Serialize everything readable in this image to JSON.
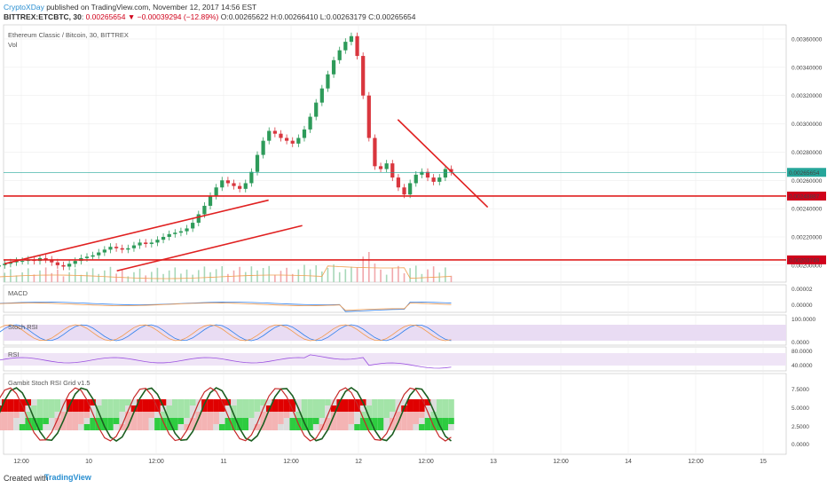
{
  "header": {
    "author": "CryptoXDay",
    "published": "published on TradingView.com, November 12, 2017 14:56 EST",
    "symbol": "BITTREX:ETCBTC, 30",
    "last": "0.00265654",
    "change": "▼ −0.00039294 (−12.89%)",
    "ohlc": "O:0.00265622 H:0.00266410 L:0.00263179 C:0.00265654"
  },
  "footer": {
    "created": "Created with",
    "brand": "TradingView"
  },
  "chart_data": {
    "type": "candlestick",
    "title": "Ethereum Classic / Bitcoin, 30, BITTREX",
    "volume_label": "Vol",
    "x_ticks": [
      "12:00",
      "10",
      "12:00",
      "11",
      "12:00",
      "12",
      "12:00",
      "13",
      "12:00",
      "14",
      "12:00",
      "15"
    ],
    "price_axis": {
      "ticks": [
        "0.00360000",
        "0.00340000",
        "0.00320000",
        "0.00300000",
        "0.00280000",
        "0.00260000",
        "0.00240000",
        "0.00220000",
        "0.00200000"
      ],
      "ylim": [
        0.00188,
        0.0037
      ]
    },
    "price_labels": [
      {
        "value": 0.00265654,
        "text": "0.00265654",
        "color": "#26a69a"
      },
      {
        "value": 0.00248887,
        "text": "0.00248887",
        "color": "#d0021b"
      },
      {
        "value": 0.00203749,
        "text": "0.00203749",
        "color": "#d0021b"
      }
    ],
    "close_series": [
      0.002,
      0.00201,
      0.00202,
      0.00203,
      0.00203,
      0.00204,
      0.00203,
      0.00205,
      0.00204,
      0.00202,
      0.002,
      0.00199,
      0.00201,
      0.00203,
      0.00205,
      0.00206,
      0.00207,
      0.00209,
      0.00211,
      0.00213,
      0.00212,
      0.00211,
      0.00212,
      0.00214,
      0.00216,
      0.00215,
      0.00216,
      0.00218,
      0.0022,
      0.00222,
      0.00223,
      0.00224,
      0.00226,
      0.0023,
      0.00236,
      0.00242,
      0.00249,
      0.00255,
      0.0026,
      0.00258,
      0.00256,
      0.00254,
      0.00258,
      0.00266,
      0.00278,
      0.00288,
      0.00295,
      0.00293,
      0.0029,
      0.00288,
      0.00286,
      0.0029,
      0.00296,
      0.00305,
      0.00315,
      0.00325,
      0.00335,
      0.00345,
      0.00352,
      0.00358,
      0.00362,
      0.00348,
      0.0032,
      0.0029,
      0.0027,
      0.00268,
      0.00272,
      0.00262,
      0.00255,
      0.0025,
      0.00258,
      0.00264,
      0.00266,
      0.00262,
      0.00259,
      0.00262,
      0.00268,
      0.00266
    ],
    "horizontal_lines": [
      0.00248887,
      0.00203749
    ],
    "trendlines": [
      {
        "from": [
          "09 09:00",
          0.00201
        ],
        "to": [
          "11 08:00",
          0.00246
        ]
      },
      {
        "from": [
          "10 05:00",
          0.00196
        ],
        "to": [
          "11 14:00",
          0.00228
        ]
      },
      {
        "from": [
          "12 07:00",
          0.00303
        ],
        "to": [
          "12 23:00",
          0.00241
        ]
      }
    ],
    "indicators": [
      {
        "name": "MACD",
        "axis_ticks": [
          "0.00002",
          "0.00000"
        ]
      },
      {
        "name": "Stoch RSI",
        "axis_ticks": [
          "100.0000",
          "0.0000"
        ]
      },
      {
        "name": "RSI",
        "axis_ticks": [
          "80.0000",
          "40.0000"
        ]
      },
      {
        "name": "Gambit Stoch RSI Grid v1.5",
        "axis_ticks": [
          "7.5000",
          "5.0000",
          "2.5000",
          "0.0000"
        ]
      }
    ]
  }
}
